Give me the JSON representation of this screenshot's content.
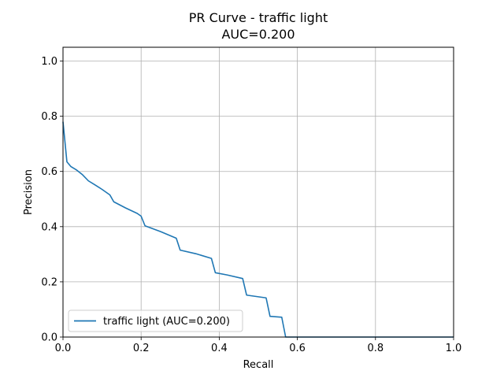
{
  "chart_data": {
    "type": "line",
    "title": "PR Curve - traffic light",
    "subtitle": "AUC=0.200",
    "xlabel": "Recall",
    "ylabel": "Precision",
    "xlim": [
      0.0,
      1.0
    ],
    "ylim": [
      0.0,
      1.05
    ],
    "x_ticks": [
      "0.0",
      "0.2",
      "0.4",
      "0.6",
      "0.8",
      "1.0"
    ],
    "y_ticks": [
      "0.0",
      "0.2",
      "0.4",
      "0.6",
      "0.8",
      "1.0"
    ],
    "grid": true,
    "legend_placement": "lower-left",
    "series": [
      {
        "name": "traffic light (AUC=0.200)",
        "color": "#1f77b4",
        "x": [
          0.0,
          0.01,
          0.02,
          0.035,
          0.05,
          0.065,
          0.08,
          0.1,
          0.12,
          0.13,
          0.16,
          0.19,
          0.2,
          0.21,
          0.25,
          0.29,
          0.3,
          0.34,
          0.38,
          0.39,
          0.42,
          0.46,
          0.47,
          0.52,
          0.53,
          0.56,
          0.57,
          0.6,
          0.8,
          1.0
        ],
        "y": [
          0.78,
          0.635,
          0.618,
          0.605,
          0.588,
          0.566,
          0.553,
          0.535,
          0.515,
          0.49,
          0.468,
          0.448,
          0.438,
          0.403,
          0.382,
          0.358,
          0.315,
          0.302,
          0.285,
          0.233,
          0.225,
          0.212,
          0.152,
          0.142,
          0.075,
          0.072,
          0.0,
          0.0,
          0.0,
          0.0
        ]
      }
    ]
  }
}
